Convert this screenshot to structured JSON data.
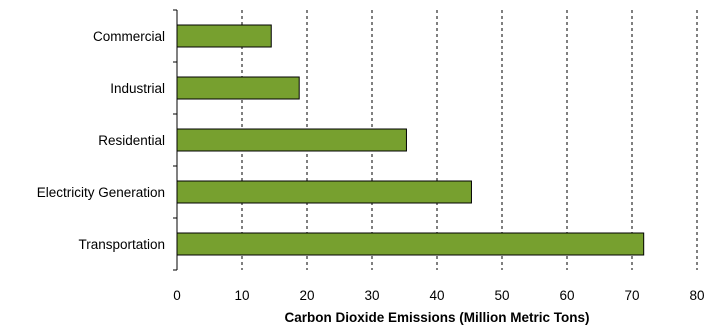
{
  "chart_data": {
    "type": "bar",
    "orientation": "horizontal",
    "title": "",
    "xlabel": "Carbon Dioxide Emissions (Million Metric Tons)",
    "ylabel": "",
    "categories": [
      "Commercial",
      "Industrial",
      "Residential",
      "Electricity Generation",
      "Transportation"
    ],
    "values": [
      14.5,
      18.8,
      35.3,
      45.3,
      71.8
    ],
    "xlim": [
      0,
      80
    ],
    "xticks": [
      "0",
      "10",
      "20",
      "30",
      "40",
      "50",
      "60",
      "70",
      "80"
    ],
    "grid": "vertical dashed",
    "colors": {
      "bar_fill": "#77a02f",
      "bar_stroke": "#000000",
      "grid": "#000000"
    }
  }
}
